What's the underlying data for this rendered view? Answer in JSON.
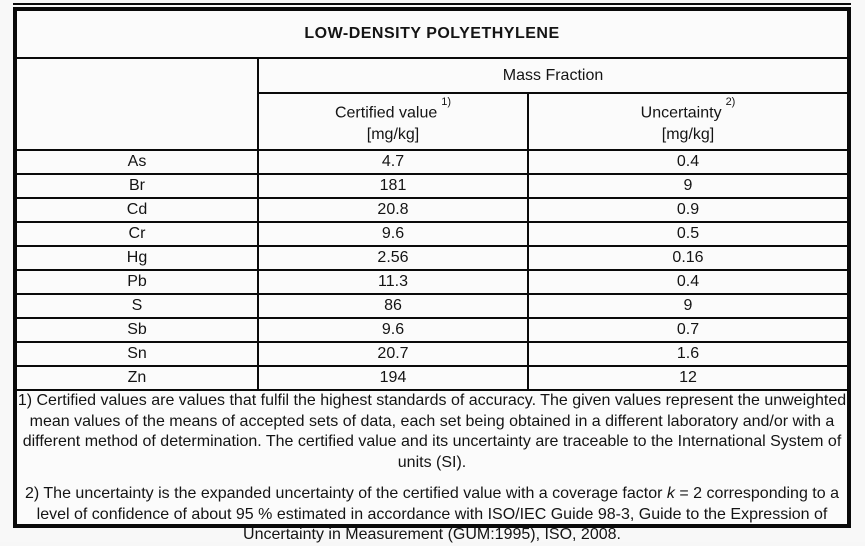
{
  "page": {
    "title": "LOW-DENSITY POLYETHYLENE"
  },
  "table": {
    "group_header": "Mass Fraction",
    "columns": [
      {
        "label": "Certified value",
        "footnote_ref": "1)",
        "unit": "[mg/kg]"
      },
      {
        "label": "Uncertainty",
        "footnote_ref": "2)",
        "unit": "[mg/kg]"
      }
    ],
    "rows": [
      {
        "element": "As",
        "certified": "4.7",
        "uncertainty": "0.4"
      },
      {
        "element": "Br",
        "certified": "181",
        "uncertainty": "9"
      },
      {
        "element": "Cd",
        "certified": "20.8",
        "uncertainty": "0.9"
      },
      {
        "element": "Cr",
        "certified": "9.6",
        "uncertainty": "0.5"
      },
      {
        "element": "Hg",
        "certified": "2.56",
        "uncertainty": "0.16"
      },
      {
        "element": "Pb",
        "certified": "11.3",
        "uncertainty": "0.4"
      },
      {
        "element": "S",
        "certified": "86",
        "uncertainty": "9"
      },
      {
        "element": "Sb",
        "certified": "9.6",
        "uncertainty": "0.7"
      },
      {
        "element": "Sn",
        "certified": "20.7",
        "uncertainty": "1.6"
      },
      {
        "element": "Zn",
        "certified": "194",
        "uncertainty": "12"
      }
    ]
  },
  "footnotes": {
    "note1": "1) Certified values are values that fulfil the highest standards of accuracy. The given values represent the unweighted mean values of the means of accepted sets of data, each set being obtained in a different laboratory and/or with a different method of determination. The certified value and its uncertainty are traceable to the International System of units (SI).",
    "note2_before_k": "2) The uncertainty is the expanded uncertainty of the certified value with a coverage factor ",
    "note2_k": "k",
    "note2_after_k": " = 2 corresponding to a level of confidence of about 95 % estimated in accordance with ISO/IEC Guide 98-3, Guide to the Expression of Uncertainty in Measurement (GUM:1995), ISO, 2008."
  },
  "colors": {
    "border": "#0a0a0a",
    "page_background": "#f8f8f8",
    "paper_background": "#fbfbfb",
    "text": "#141414"
  }
}
